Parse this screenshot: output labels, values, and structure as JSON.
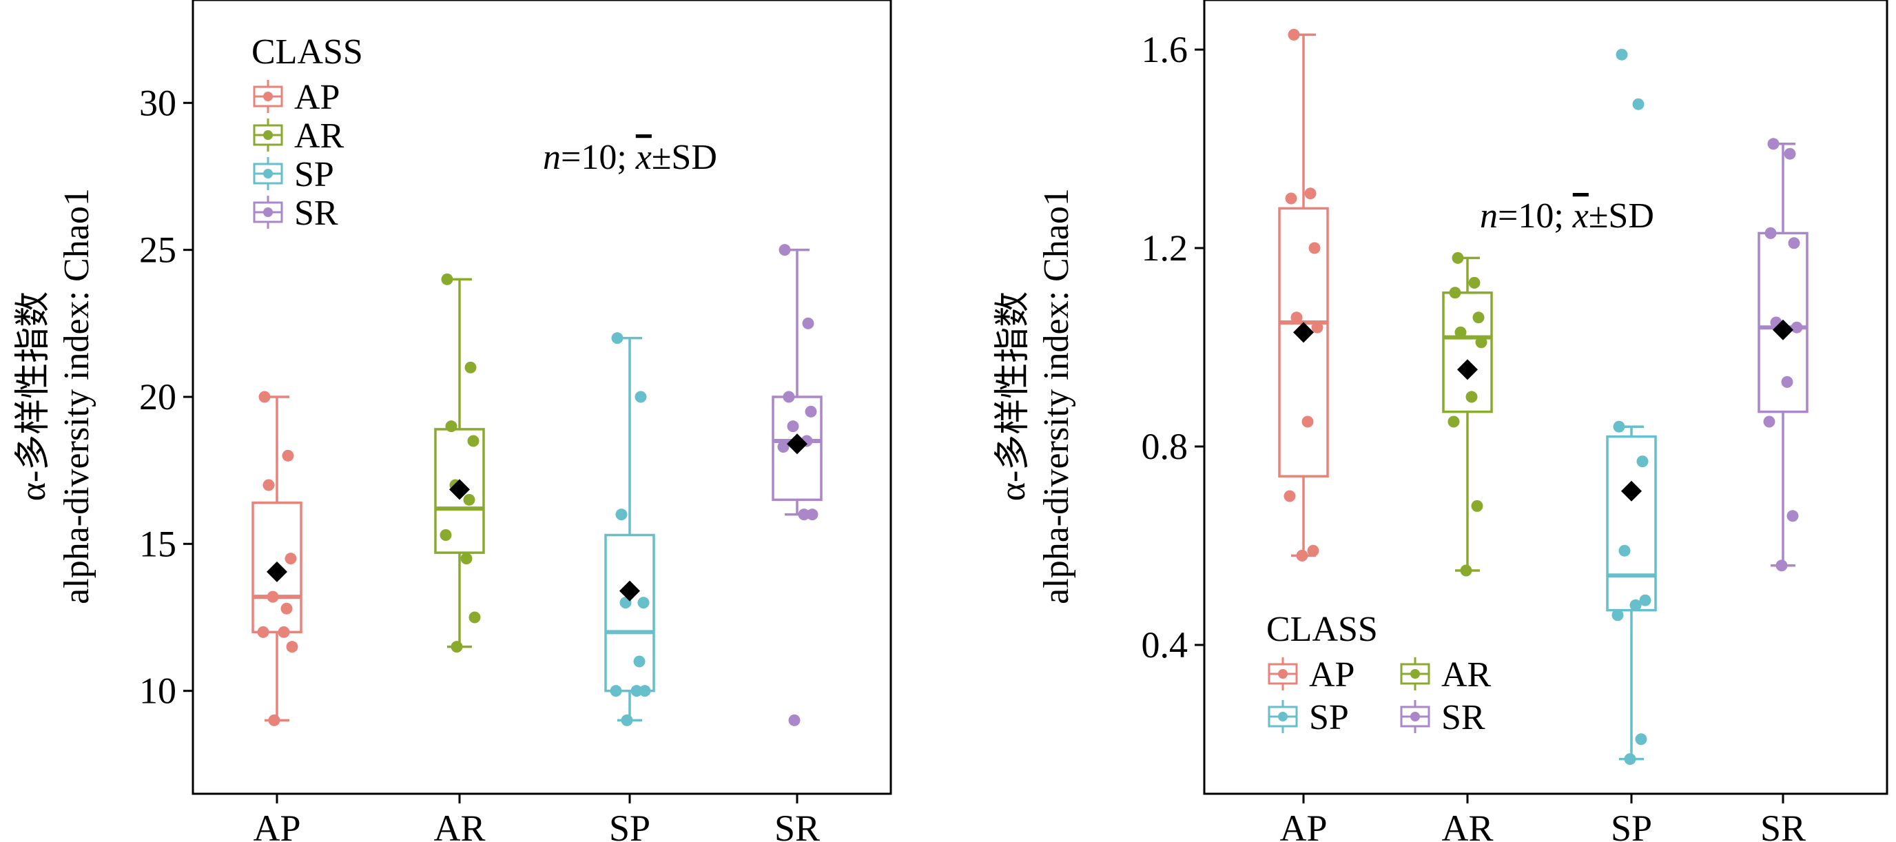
{
  "colors": {
    "AP": "#E8837A",
    "AR": "#8AAA2E",
    "SP": "#66BFCB",
    "SR": "#A987C8",
    "mean": "#000000"
  },
  "chart_data": [
    {
      "type": "box",
      "ylabel_line1": "α-多样性指数",
      "ylabel_line2": "alpha-diversity index: Chao1",
      "annotation_n": "n",
      "annotation_rest": "=10; ",
      "annotation_x": "x",
      "annotation_sd": "±SD",
      "categories": [
        "AP",
        "AR",
        "SP",
        "SR"
      ],
      "ylim": [
        6.5,
        33.5
      ],
      "yticks": [
        10,
        15,
        20,
        25,
        30
      ],
      "yticklabels": [
        "10",
        "15",
        "20",
        "25",
        "30"
      ],
      "legend": {
        "title": "CLASS",
        "entries": [
          "AP",
          "AR",
          "SP",
          "SR"
        ],
        "placement": "top-left"
      },
      "boxes": [
        {
          "name": "AP",
          "whisker_low": 9,
          "q1": 12,
          "median": 13.2,
          "q3": 16.4,
          "whisker_high": 20,
          "mean": 14.05,
          "points": [
            20,
            18,
            17,
            14.5,
            13.2,
            12.8,
            12,
            12,
            11.5,
            9
          ]
        },
        {
          "name": "AR",
          "whisker_low": 11.5,
          "q1": 14.7,
          "median": 16.2,
          "q3": 18.9,
          "whisker_high": 24,
          "mean": 16.85,
          "points": [
            24,
            21,
            19,
            18.5,
            17,
            16.5,
            15.3,
            14.5,
            12.5,
            11.5
          ]
        },
        {
          "name": "SP",
          "whisker_low": 9,
          "q1": 10,
          "median": 12,
          "q3": 15.3,
          "whisker_high": 22,
          "mean": 13.4,
          "points": [
            22,
            20,
            16,
            13,
            13,
            11,
            10,
            10,
            10,
            9
          ]
        },
        {
          "name": "SR",
          "whisker_low": 16,
          "q1": 16.5,
          "median": 18.5,
          "q3": 20,
          "whisker_high": 25,
          "mean": 18.4,
          "points": [
            25,
            22.5,
            20,
            19.5,
            19,
            18.5,
            18.3,
            16,
            16,
            9
          ]
        }
      ]
    },
    {
      "type": "box",
      "ylabel_line1": "α-多样性指数",
      "ylabel_line2": "alpha-diversity index: Chao1",
      "annotation_n": "n",
      "annotation_rest": "=10; ",
      "annotation_x": "x",
      "annotation_sd": "±SD",
      "categories": [
        "AP",
        "AR",
        "SP",
        "SR"
      ],
      "ylim": [
        0.1,
        1.7
      ],
      "yticks": [
        0.4,
        0.8,
        1.2,
        1.6
      ],
      "yticklabels": [
        "0.4",
        "0.8",
        "1.2",
        "1.6"
      ],
      "legend": {
        "title": "CLASS",
        "entries": [
          "AP",
          "SP",
          "AR",
          "SR"
        ],
        "placement": "bottom-left"
      },
      "boxes": [
        {
          "name": "AP",
          "whisker_low": 0.58,
          "q1": 0.74,
          "median": 1.05,
          "q3": 1.28,
          "whisker_high": 1.63,
          "mean": 1.03,
          "points": [
            1.63,
            1.31,
            1.3,
            1.2,
            1.06,
            1.04,
            0.85,
            0.7,
            0.59,
            0.58
          ]
        },
        {
          "name": "AR",
          "whisker_low": 0.55,
          "q1": 0.87,
          "median": 1.02,
          "q3": 1.11,
          "whisker_high": 1.18,
          "mean": 0.955,
          "points": [
            1.18,
            1.13,
            1.11,
            1.06,
            1.03,
            1.01,
            0.9,
            0.85,
            0.68,
            0.55
          ]
        },
        {
          "name": "SP",
          "whisker_low": 0.17,
          "q1": 0.47,
          "median": 0.54,
          "q3": 0.82,
          "whisker_high": 0.84,
          "mean": 0.71,
          "points": [
            1.59,
            1.49,
            0.84,
            0.77,
            0.59,
            0.49,
            0.48,
            0.46,
            0.21,
            0.17
          ]
        },
        {
          "name": "SR",
          "whisker_low": 0.56,
          "q1": 0.87,
          "median": 1.04,
          "q3": 1.23,
          "whisker_high": 1.41,
          "mean": 1.035,
          "points": [
            1.41,
            1.39,
            1.23,
            1.21,
            1.05,
            1.04,
            0.93,
            0.85,
            0.66,
            0.56
          ]
        }
      ]
    }
  ]
}
